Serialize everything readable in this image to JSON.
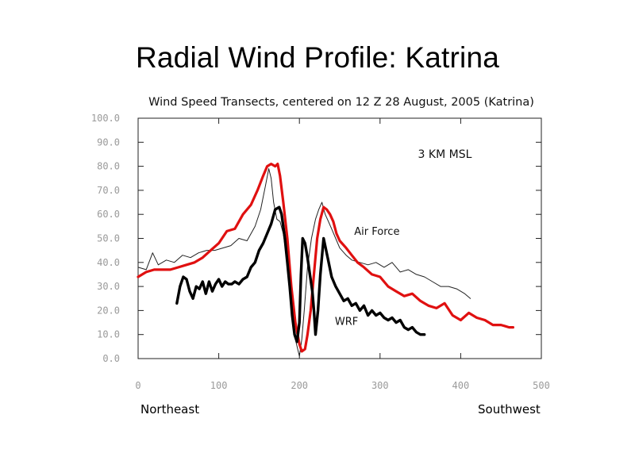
{
  "slide": {
    "title": "Radial Wind Profile: Katrina"
  },
  "chart_data": {
    "type": "line",
    "title": "Wind Speed Transects, centered on 12 Z 28 August, 2005 (Katrina)",
    "xlabel": "",
    "ylabel": "",
    "xlim": [
      0,
      500
    ],
    "ylim": [
      0,
      100
    ],
    "x_ticks": [
      "0",
      "100",
      "200",
      "300",
      "400",
      "500"
    ],
    "y_ticks": [
      "0.0",
      "10.0",
      "20.0",
      "30.0",
      "40.0",
      "50.0",
      "60.0",
      "70.0",
      "80.0",
      "90.0",
      "100.0"
    ],
    "direction_labels": {
      "left": "Northeast",
      "right": "Southwest"
    },
    "annotations": {
      "level": "3 KM MSL",
      "air_force": "Air Force",
      "wrf": "WRF"
    },
    "series": [
      {
        "name": "Air Force (thin black)",
        "color": "#222222",
        "x": [
          0,
          10,
          18,
          25,
          35,
          45,
          55,
          65,
          75,
          85,
          95,
          105,
          115,
          125,
          135,
          145,
          152,
          158,
          162,
          165,
          168,
          172,
          176,
          180,
          185,
          190,
          195,
          200,
          203,
          206,
          210,
          215,
          220,
          224,
          228,
          232,
          236,
          240,
          245,
          250,
          258,
          265,
          275,
          285,
          295,
          305,
          315,
          325,
          335,
          345,
          355,
          365,
          375,
          385,
          395,
          405,
          412
        ],
        "y": [
          38,
          37,
          44,
          39,
          41,
          40,
          43,
          42,
          44,
          45,
          45,
          46,
          47,
          50,
          49,
          55,
          62,
          72,
          79,
          75,
          65,
          58,
          57,
          52,
          40,
          25,
          8,
          1,
          8,
          20,
          38,
          50,
          58,
          62,
          65,
          60,
          57,
          54,
          50,
          46,
          43,
          41,
          40,
          39,
          40,
          38,
          40,
          36,
          37,
          35,
          34,
          32,
          30,
          30,
          29,
          27,
          25
        ]
      },
      {
        "name": "Red",
        "color": "#e01010",
        "x": [
          0,
          10,
          20,
          30,
          40,
          50,
          60,
          70,
          80,
          90,
          100,
          110,
          120,
          130,
          140,
          148,
          155,
          160,
          165,
          170,
          173,
          176,
          180,
          185,
          190,
          195,
          200,
          203,
          207,
          210,
          214,
          218,
          222,
          226,
          230,
          234,
          238,
          242,
          246,
          250,
          258,
          265,
          272,
          280,
          290,
          300,
          310,
          320,
          330,
          340,
          350,
          360,
          370,
          380,
          390,
          400,
          410,
          420,
          430,
          440,
          450,
          460,
          465
        ],
        "y": [
          34,
          36,
          37,
          37,
          37,
          38,
          39,
          40,
          42,
          45,
          48,
          53,
          54,
          60,
          64,
          70,
          76,
          80,
          81,
          80,
          81,
          76,
          65,
          50,
          30,
          15,
          6,
          3,
          4,
          10,
          20,
          35,
          50,
          58,
          63,
          62,
          60,
          57,
          52,
          49,
          46,
          43,
          40,
          38,
          35,
          34,
          30,
          28,
          26,
          27,
          24,
          22,
          21,
          23,
          18,
          16,
          19,
          17,
          16,
          14,
          14,
          13,
          13
        ]
      },
      {
        "name": "WRF (thick black)",
        "color": "#000000",
        "x": [
          48,
          52,
          56,
          60,
          64,
          68,
          72,
          76,
          80,
          84,
          88,
          92,
          96,
          100,
          104,
          108,
          112,
          116,
          120,
          125,
          130,
          135,
          140,
          145,
          150,
          155,
          160,
          165,
          170,
          175,
          178,
          182,
          185,
          188,
          191,
          194,
          197,
          200,
          202,
          204,
          207,
          210,
          213,
          216,
          218,
          220,
          223,
          226,
          230,
          235,
          240,
          245,
          250,
          255,
          260,
          265,
          270,
          275,
          280,
          285,
          290,
          295,
          300,
          305,
          310,
          315,
          320,
          325,
          330,
          335,
          340,
          345,
          350,
          355
        ],
        "y": [
          23,
          30,
          34,
          33,
          28,
          25,
          30,
          29,
          32,
          27,
          32,
          28,
          31,
          33,
          30,
          32,
          31,
          31,
          32,
          31,
          33,
          34,
          38,
          40,
          45,
          48,
          52,
          56,
          62,
          63,
          60,
          50,
          40,
          30,
          18,
          10,
          7,
          15,
          35,
          50,
          48,
          42,
          35,
          28,
          20,
          10,
          20,
          35,
          50,
          42,
          34,
          30,
          27,
          24,
          25,
          22,
          23,
          20,
          22,
          18,
          20,
          18,
          19,
          17,
          16,
          17,
          15,
          16,
          13,
          12,
          13,
          11,
          10,
          10
        ]
      }
    ]
  }
}
